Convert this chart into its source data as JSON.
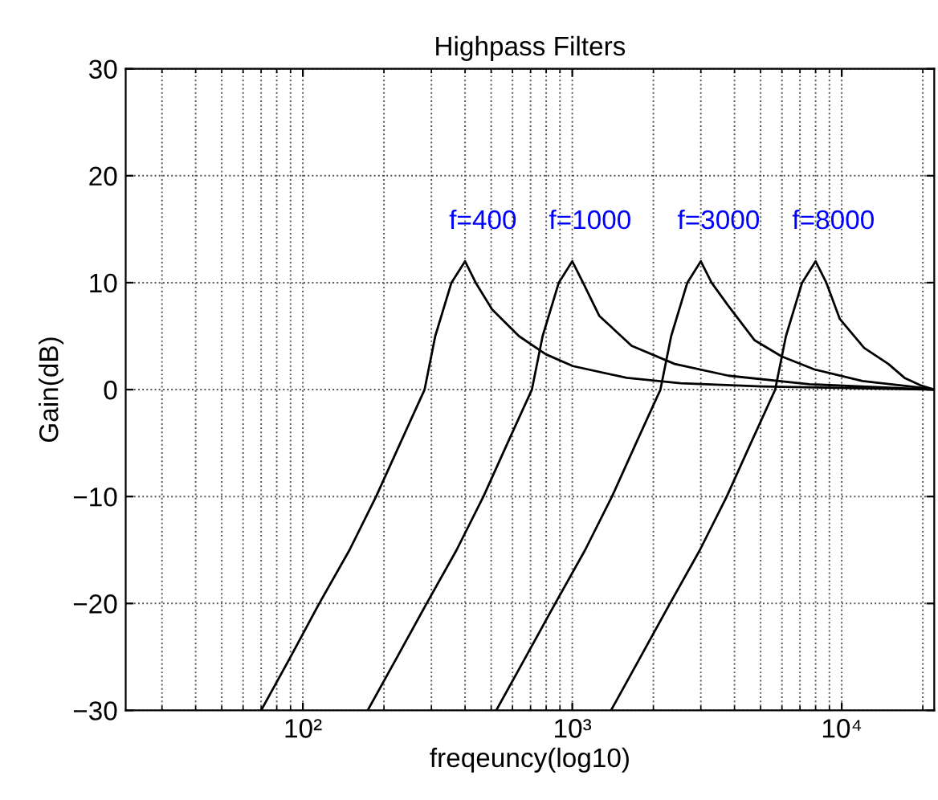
{
  "chart_data": {
    "type": "line",
    "title": "Highpass Filters",
    "xlabel": "freqeuncy(log10)",
    "ylabel": "Gain(dB)",
    "log": "x",
    "xlim": [
      22,
      22050
    ],
    "ylim": [
      -30,
      30
    ],
    "xticks": [
      {
        "value": 100,
        "label": "10²"
      },
      {
        "value": 1000,
        "label": "10³"
      },
      {
        "value": 10000,
        "label": "10⁴"
      }
    ],
    "yticks": [
      {
        "value": -30,
        "label": "−30"
      },
      {
        "value": -20,
        "label": "−20"
      },
      {
        "value": -10,
        "label": "−10"
      },
      0,
      10,
      20,
      30
    ],
    "grid": true,
    "marker": "none",
    "line_style": "solid",
    "series": [
      {
        "color": "#000000",
        "x": [
          70,
          90,
          115,
          149,
          187,
          230,
          283,
          310,
          356,
          400,
          438,
          504,
          634,
          798,
          1005,
          1592,
          2524,
          5040,
          12640,
          22050
        ],
        "values": [
          -30,
          -25,
          -20,
          -15,
          -10,
          -5,
          0,
          5,
          10,
          12,
          10,
          7.5,
          5,
          3.3,
          2.2,
          1.1,
          0.6,
          0.3,
          0.1,
          0
        ]
      },
      {
        "color": "#000000",
        "x": [
          174,
          224,
          288,
          372,
          468,
          575,
          708,
          776,
          891,
          1000,
          1096,
          1259,
          1660,
          2400,
          3800,
          7590,
          22050
        ],
        "values": [
          -30,
          -25,
          -20,
          -15,
          -10,
          -5,
          0,
          5,
          10,
          12,
          10,
          6.9,
          4.1,
          2.4,
          1.3,
          0.5,
          0
        ]
      },
      {
        "color": "#000000",
        "x": [
          522,
          672,
          864,
          1116,
          1404,
          1725,
          2124,
          2328,
          2673,
          3000,
          3288,
          3777,
          4755,
          5985,
          7890,
          11940,
          19350,
          22050
        ],
        "values": [
          -30,
          -25,
          -20,
          -15,
          -10,
          -5,
          0,
          5,
          10,
          12,
          10,
          7.9,
          4.6,
          3.1,
          1.9,
          0.8,
          0.2,
          0
        ]
      },
      {
        "color": "#000000",
        "x": [
          1392,
          1792,
          2304,
          2976,
          3744,
          4600,
          5664,
          6208,
          7128,
          8000,
          8768,
          9840,
          12110,
          14900,
          17100,
          19630,
          22050
        ],
        "values": [
          -30,
          -25,
          -20,
          -15,
          -10,
          -5,
          0,
          5,
          10,
          12,
          10,
          6.6,
          3.9,
          2.4,
          1.1,
          0.4,
          0
        ]
      }
    ],
    "annotations": [
      {
        "text": "f=400",
        "x": 400,
        "y": 12
      },
      {
        "text": "f=1000",
        "x": 1000,
        "y": 12
      },
      {
        "text": "f=3000",
        "x": 3000,
        "y": 12
      },
      {
        "text": "f=8000",
        "x": 8000,
        "y": 12
      }
    ]
  }
}
